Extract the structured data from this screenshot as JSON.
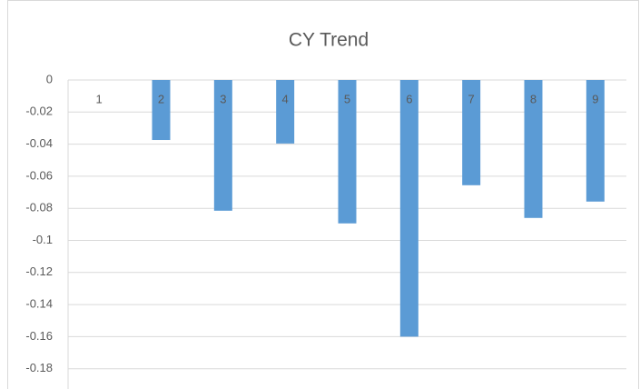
{
  "chart_data": {
    "type": "bar",
    "title": "CY Trend",
    "categories": [
      "1",
      "2",
      "3",
      "4",
      "5",
      "6",
      "7",
      "8",
      "9"
    ],
    "values": [
      0,
      -0.0374,
      -0.0815,
      -0.0396,
      -0.0894,
      -0.16,
      -0.0656,
      -0.086,
      -0.0758
    ],
    "color": "#5b9bd5",
    "ylim": [
      -0.2,
      0
    ],
    "yticks": [
      0,
      -0.02,
      -0.04,
      -0.06,
      -0.08,
      -0.1,
      -0.12,
      -0.14,
      -0.16,
      -0.18
    ],
    "grid": true
  }
}
